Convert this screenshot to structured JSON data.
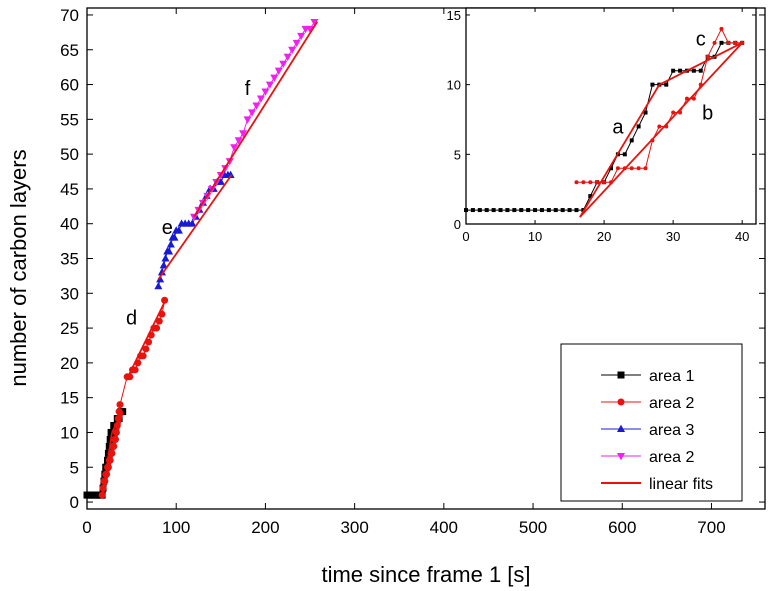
{
  "chart_data": [
    {
      "type": "scatter",
      "xlabel": "time since frame 1 [s]",
      "ylabel": "number of carbon layers",
      "xlim": [
        0,
        760
      ],
      "ylim": [
        -1,
        71
      ],
      "xticks": [
        0,
        100,
        200,
        300,
        400,
        500,
        600,
        700
      ],
      "yticks": [
        0,
        5,
        10,
        15,
        20,
        25,
        30,
        35,
        40,
        45,
        50,
        55,
        60,
        65,
        70
      ],
      "legend_position": "bottom-right",
      "grid": false,
      "series": [
        {
          "name": "area 1",
          "color": "#000000",
          "marker": "square",
          "x": [
            0,
            2,
            4,
            6,
            8,
            10,
            12,
            14,
            16,
            17,
            18,
            19,
            20,
            21,
            22,
            23,
            24,
            25,
            26,
            27,
            28,
            30,
            32,
            34,
            36,
            38,
            40
          ],
          "y": [
            1,
            1,
            1,
            1,
            1,
            1,
            1,
            1,
            1,
            1,
            2,
            3,
            4,
            5,
            5,
            6,
            7,
            8,
            9,
            10,
            10,
            11,
            11,
            12,
            12,
            13,
            13
          ]
        },
        {
          "name": "area 2",
          "color": "#e8130e",
          "marker": "circle",
          "x": [
            17,
            18,
            19,
            20,
            21,
            22,
            23,
            24,
            25,
            26,
            27,
            28,
            29,
            30,
            31,
            32,
            33,
            34,
            35,
            36,
            37,
            45,
            48,
            51,
            54,
            57,
            60,
            63,
            66,
            69,
            72,
            75,
            78,
            81,
            84,
            87
          ],
          "y": [
            1,
            2,
            3,
            3,
            4,
            4,
            5,
            5,
            6,
            6,
            7,
            7,
            8,
            8,
            9,
            9,
            10,
            11,
            12,
            13,
            14,
            18,
            18,
            19,
            19,
            20,
            21,
            21,
            22,
            23,
            24,
            25,
            25,
            26,
            27,
            29
          ]
        },
        {
          "name": "area 3",
          "color": "#1a1ad4",
          "marker": "triangle-up",
          "x": [
            80,
            82,
            84,
            86,
            88,
            90,
            92,
            94,
            96,
            98,
            100,
            103,
            106,
            110,
            114,
            118,
            122,
            126,
            130,
            134,
            138,
            142,
            146,
            150,
            154,
            158,
            161
          ],
          "y": [
            31,
            32,
            33,
            34,
            35,
            36,
            36,
            37,
            38,
            38,
            39,
            39,
            40,
            40,
            40,
            40,
            41,
            42,
            43,
            44,
            45,
            45,
            46,
            46,
            47,
            47,
            47
          ]
        },
        {
          "name": "area 2",
          "color": "#ee22ee",
          "marker": "triangle-down",
          "x": [
            120,
            125,
            130,
            135,
            140,
            145,
            150,
            155,
            160,
            165,
            170,
            175,
            180,
            185,
            190,
            195,
            200,
            205,
            210,
            215,
            220,
            225,
            230,
            235,
            240,
            245,
            250,
            255
          ],
          "y": [
            41,
            42,
            43,
            44,
            45,
            46,
            47,
            48,
            49,
            51,
            52,
            53,
            55,
            56,
            57,
            58,
            59,
            60,
            61,
            62,
            63,
            64,
            65,
            66,
            67,
            68,
            68,
            69
          ]
        }
      ],
      "fits": {
        "name": "linear fits",
        "color": "#e8130e",
        "lines": [
          {
            "x": [
              17,
              28
            ],
            "y": [
              0.5,
              10
            ]
          },
          {
            "x": [
              17,
              40
            ],
            "y": [
              0.5,
              13
            ]
          },
          {
            "x": [
              28,
              40
            ],
            "y": [
              10,
              13
            ]
          },
          {
            "x": [
              20,
              38
            ],
            "y": [
              3,
              13
            ]
          },
          {
            "x": [
              44,
              88
            ],
            "y": [
              17.5,
              29
            ]
          },
          {
            "x": [
              80,
              162
            ],
            "y": [
              32,
              47
            ]
          },
          {
            "x": [
              120,
              258
            ],
            "y": [
              41,
              69
            ]
          }
        ]
      },
      "annotations": [
        {
          "text": "d",
          "x": 50,
          "y": 25.5
        },
        {
          "text": "e",
          "x": 90,
          "y": 38.5
        },
        {
          "text": "f",
          "x": 180,
          "y": 58.5
        }
      ]
    },
    {
      "type": "scatter",
      "inset": true,
      "xlim": [
        0,
        42
      ],
      "ylim": [
        0,
        15.5
      ],
      "xticks": [
        0,
        10,
        20,
        30,
        40
      ],
      "yticks": [
        0,
        5,
        10,
        15
      ],
      "series": [
        {
          "name": "area 1",
          "color": "#000000",
          "marker": "square",
          "x": [
            0,
            1,
            2,
            3,
            4,
            5,
            6,
            7,
            8,
            9,
            10,
            11,
            12,
            13,
            14,
            15,
            16,
            17,
            18,
            19,
            20,
            21,
            22,
            23,
            24,
            25,
            26,
            27,
            28,
            29,
            30,
            31,
            32,
            33,
            34,
            35,
            36,
            37,
            38,
            39,
            40
          ],
          "y": [
            1,
            1,
            1,
            1,
            1,
            1,
            1,
            1,
            1,
            1,
            1,
            1,
            1,
            1,
            1,
            1,
            1,
            1,
            2,
            3,
            3,
            4,
            5,
            5,
            6,
            7,
            8,
            10,
            10,
            10,
            11,
            11,
            11,
            11,
            11,
            12,
            12,
            13,
            13,
            13,
            13
          ]
        },
        {
          "name": "area 2",
          "color": "#e8130e",
          "marker": "circle",
          "x": [
            16,
            17,
            18,
            19,
            20,
            21,
            22,
            23,
            24,
            25,
            26,
            27,
            28,
            29,
            30,
            31,
            32,
            33,
            34,
            35,
            36,
            37,
            38,
            39,
            40
          ],
          "y": [
            3,
            3,
            3,
            3,
            3,
            3,
            4,
            4,
            4,
            4,
            4,
            6,
            7,
            7,
            8,
            8,
            9,
            9,
            10,
            12,
            13,
            14,
            13,
            13,
            13
          ]
        }
      ],
      "fits": {
        "color": "#e8130e",
        "lines": [
          {
            "x": [
              16.5,
              28
            ],
            "y": [
              0.5,
              10
            ]
          },
          {
            "x": [
              16.5,
              40
            ],
            "y": [
              0.5,
              13
            ]
          },
          {
            "x": [
              28,
              40
            ],
            "y": [
              10,
              13
            ]
          }
        ]
      },
      "annotations": [
        {
          "text": "a",
          "x": 22,
          "y": 6.5
        },
        {
          "text": "b",
          "x": 35,
          "y": 7.5
        },
        {
          "text": "c",
          "x": 34,
          "y": 12.8
        }
      ]
    }
  ],
  "legend": [
    {
      "label": "area 1",
      "color": "#000000",
      "marker": "square"
    },
    {
      "label": "area 2",
      "color": "#e8130e",
      "marker": "circle"
    },
    {
      "label": "area 3",
      "color": "#1a1ad4",
      "marker": "triangle-up"
    },
    {
      "label": "area 2",
      "color": "#ee22ee",
      "marker": "triangle-down"
    },
    {
      "label": "linear fits",
      "color": "#e8130e",
      "marker": "line"
    }
  ]
}
